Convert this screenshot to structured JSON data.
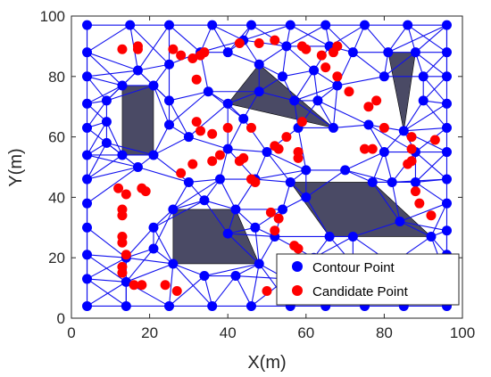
{
  "chart_data": {
    "type": "scatter",
    "xlabel": "X(m)",
    "ylabel": "Y(m)",
    "xlim": [
      0,
      100
    ],
    "ylim": [
      0,
      100
    ],
    "xticks": [
      "0",
      "20",
      "40",
      "60",
      "80",
      "100"
    ],
    "yticks": [
      "0",
      "20",
      "40",
      "60",
      "80",
      "100"
    ],
    "grid": false,
    "legend_position": "bottom-right",
    "colors": {
      "contour": "#0000ff",
      "candidate": "#ff0000",
      "mesh": "#1010ee",
      "obstacle": "#4a4a65",
      "axis": "#262626"
    },
    "obstacles": [
      [
        [
          13,
          77
        ],
        [
          21,
          77
        ],
        [
          21,
          54
        ],
        [
          13,
          54
        ]
      ],
      [
        [
          26,
          36
        ],
        [
          42,
          36
        ],
        [
          48,
          18
        ],
        [
          26,
          18
        ]
      ],
      [
        [
          40,
          71
        ],
        [
          48,
          84
        ],
        [
          67,
          63
        ]
      ],
      [
        [
          56,
          45
        ],
        [
          77,
          45
        ],
        [
          92,
          27
        ],
        [
          66,
          27
        ]
      ],
      [
        [
          81,
          88
        ],
        [
          88,
          88
        ],
        [
          85,
          62
        ]
      ]
    ],
    "series": [
      {
        "name": "Contour Point",
        "points": [
          [
            4,
            4
          ],
          [
            14,
            4
          ],
          [
            25,
            4
          ],
          [
            36,
            4
          ],
          [
            46,
            4
          ],
          [
            56,
            4
          ],
          [
            65,
            4
          ],
          [
            75,
            4
          ],
          [
            85,
            4
          ],
          [
            96,
            4
          ],
          [
            4,
            13
          ],
          [
            4,
            21
          ],
          [
            4,
            30
          ],
          [
            4,
            38
          ],
          [
            4,
            46
          ],
          [
            4,
            54
          ],
          [
            4,
            63
          ],
          [
            4,
            71
          ],
          [
            4,
            80
          ],
          [
            4,
            88
          ],
          [
            4,
            97
          ],
          [
            15,
            97
          ],
          [
            25,
            97
          ],
          [
            36,
            97
          ],
          [
            46,
            97
          ],
          [
            56,
            97
          ],
          [
            65,
            97
          ],
          [
            75,
            97
          ],
          [
            86,
            97
          ],
          [
            96,
            97
          ],
          [
            96,
            13
          ],
          [
            96,
            21
          ],
          [
            96,
            29
          ],
          [
            96,
            38
          ],
          [
            96,
            46
          ],
          [
            96,
            55
          ],
          [
            96,
            63
          ],
          [
            96,
            71
          ],
          [
            96,
            80
          ],
          [
            96,
            88
          ],
          [
            13,
            77
          ],
          [
            21,
            77
          ],
          [
            13,
            54
          ],
          [
            21,
            54
          ],
          [
            9,
            72
          ],
          [
            9,
            58
          ],
          [
            9,
            65
          ],
          [
            17,
            82
          ],
          [
            25,
            72
          ],
          [
            17,
            50
          ],
          [
            26,
            36
          ],
          [
            42,
            36
          ],
          [
            48,
            18
          ],
          [
            26,
            18
          ],
          [
            21,
            30
          ],
          [
            21,
            23
          ],
          [
            34,
            14
          ],
          [
            42,
            14
          ],
          [
            47,
            30
          ],
          [
            34,
            39
          ],
          [
            40,
            71
          ],
          [
            48,
            84
          ],
          [
            67,
            63
          ],
          [
            48,
            75
          ],
          [
            57,
            72
          ],
          [
            58,
            63
          ],
          [
            54,
            80
          ],
          [
            63,
            72
          ],
          [
            35,
            75
          ],
          [
            44,
            66
          ],
          [
            56,
            45
          ],
          [
            77,
            45
          ],
          [
            92,
            27
          ],
          [
            66,
            27
          ],
          [
            60,
            40
          ],
          [
            72,
            27
          ],
          [
            84,
            32
          ],
          [
            82,
            45
          ],
          [
            60,
            49
          ],
          [
            70,
            49
          ],
          [
            81,
            88
          ],
          [
            88,
            88
          ],
          [
            85,
            62
          ],
          [
            80,
            80
          ],
          [
            90,
            80
          ],
          [
            76,
            64
          ],
          [
            90,
            72
          ],
          [
            72,
            88
          ],
          [
            14,
            20
          ],
          [
            14,
            12
          ],
          [
            30,
            45
          ],
          [
            38,
            46
          ],
          [
            25,
            84
          ],
          [
            33,
            88
          ],
          [
            40,
            88
          ],
          [
            30,
            60
          ],
          [
            40,
            56
          ],
          [
            50,
            55
          ],
          [
            62,
            82
          ],
          [
            68,
            77
          ],
          [
            80,
            55
          ],
          [
            88,
            55
          ],
          [
            88,
            45
          ],
          [
            82,
            18
          ],
          [
            72,
            18
          ],
          [
            62,
            20
          ],
          [
            55,
            13
          ],
          [
            52,
            27
          ],
          [
            47,
            46
          ],
          [
            40,
            28
          ],
          [
            88,
            12
          ],
          [
            76,
            12
          ],
          [
            64,
            12
          ],
          [
            44,
            92
          ],
          [
            55,
            90
          ],
          [
            66,
            90
          ],
          [
            25,
            64
          ],
          [
            54,
            36
          ]
        ]
      },
      {
        "name": "Candidate Point",
        "points": [
          [
            13,
            89
          ],
          [
            17,
            89
          ],
          [
            17,
            90
          ],
          [
            26,
            89
          ],
          [
            28,
            87
          ],
          [
            31,
            86
          ],
          [
            34,
            88
          ],
          [
            33,
            87
          ],
          [
            32,
            79
          ],
          [
            43,
            91
          ],
          [
            48,
            91
          ],
          [
            52,
            92
          ],
          [
            59,
            90
          ],
          [
            60,
            89
          ],
          [
            64,
            87
          ],
          [
            68,
            90
          ],
          [
            67,
            88
          ],
          [
            65,
            83
          ],
          [
            68,
            80
          ],
          [
            71,
            75
          ],
          [
            76,
            70
          ],
          [
            78,
            72
          ],
          [
            80,
            63
          ],
          [
            87,
            60
          ],
          [
            93,
            59
          ],
          [
            75,
            56
          ],
          [
            77,
            56
          ],
          [
            87,
            56
          ],
          [
            87,
            52
          ],
          [
            86,
            51
          ],
          [
            88,
            42
          ],
          [
            89,
            38
          ],
          [
            92,
            34
          ],
          [
            32,
            65
          ],
          [
            33,
            62
          ],
          [
            31,
            51
          ],
          [
            28,
            48
          ],
          [
            36,
            52
          ],
          [
            38,
            54
          ],
          [
            43,
            52
          ],
          [
            44,
            53
          ],
          [
            46,
            46
          ],
          [
            47,
            45
          ],
          [
            52,
            57
          ],
          [
            53,
            56
          ],
          [
            58,
            55
          ],
          [
            58,
            53
          ],
          [
            12,
            43
          ],
          [
            14,
            41
          ],
          [
            18,
            43
          ],
          [
            19,
            42
          ],
          [
            13,
            36
          ],
          [
            13,
            34
          ],
          [
            13,
            27
          ],
          [
            13,
            25
          ],
          [
            14,
            21
          ],
          [
            13,
            17
          ],
          [
            13,
            15
          ],
          [
            16,
            11
          ],
          [
            18,
            11
          ],
          [
            24,
            11
          ],
          [
            27,
            9
          ],
          [
            50,
            9
          ],
          [
            51,
            35
          ],
          [
            53,
            33
          ],
          [
            52,
            29
          ],
          [
            57,
            24
          ],
          [
            58,
            23
          ],
          [
            62,
            12
          ],
          [
            63,
            11
          ],
          [
            65,
            11
          ],
          [
            71,
            9
          ],
          [
            55,
            60
          ],
          [
            59,
            65
          ],
          [
            46,
            63
          ],
          [
            40,
            63
          ],
          [
            36,
            61
          ]
        ]
      }
    ]
  }
}
